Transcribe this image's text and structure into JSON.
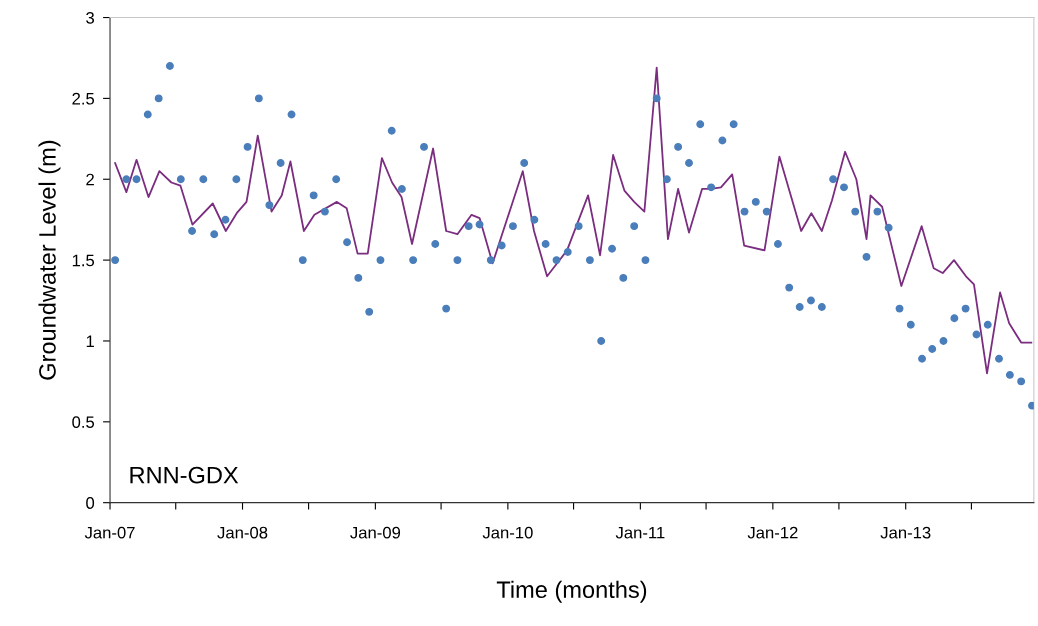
{
  "chart_data": {
    "type": "scatter",
    "xlabel": "Time (months)",
    "ylabel": "Groundwater Level (m)",
    "annotations": [
      "RNN-GDX"
    ],
    "x": [
      "2007-01-15",
      "2007-02-15",
      "2007-03-15",
      "2007-04-15",
      "2007-05-15",
      "2007-06-15",
      "2007-07-15",
      "2007-08-15",
      "2007-09-15",
      "2007-10-15",
      "2007-11-15",
      "2007-12-15",
      "2008-01-15",
      "2008-02-15",
      "2008-03-15",
      "2008-04-15",
      "2008-05-15",
      "2008-06-15",
      "2008-07-15",
      "2008-08-15",
      "2008-09-15",
      "2008-10-15",
      "2008-11-15",
      "2008-12-15",
      "2009-01-15",
      "2009-02-15",
      "2009-03-15",
      "2009-04-15",
      "2009-05-15",
      "2009-06-15",
      "2009-07-15",
      "2009-08-15",
      "2009-09-15",
      "2009-10-15",
      "2009-11-15",
      "2009-12-15",
      "2010-01-15",
      "2010-02-15",
      "2010-03-15",
      "2010-04-15",
      "2010-05-15",
      "2010-06-15",
      "2010-07-15",
      "2010-08-15",
      "2010-09-15",
      "2010-10-15",
      "2010-11-15",
      "2010-12-15",
      "2011-01-15",
      "2011-02-15",
      "2011-03-15",
      "2011-04-15",
      "2011-05-15",
      "2011-06-15",
      "2011-07-15",
      "2011-08-15",
      "2011-09-15",
      "2011-10-15",
      "2011-11-15",
      "2011-12-15",
      "2012-01-15",
      "2012-02-15",
      "2012-03-15",
      "2012-04-15",
      "2012-05-15",
      "2012-06-15",
      "2012-07-15",
      "2012-08-15",
      "2012-09-15",
      "2012-10-15",
      "2012-11-15",
      "2012-12-15",
      "2013-01-15",
      "2013-02-15",
      "2013-03-15",
      "2013-04-15",
      "2013-05-15",
      "2013-06-15",
      "2013-07-15",
      "2013-08-15",
      "2013-09-15",
      "2013-10-15",
      "2013-11-15",
      "2013-12-15"
    ],
    "series": [
      {
        "color": "#4a7ebb",
        "marker": "circle",
        "values": [
          1.5,
          2.0,
          2.0,
          2.4,
          2.5,
          2.7,
          2.0,
          1.68,
          2.0,
          1.66,
          1.75,
          2.0,
          2.2,
          2.5,
          1.84,
          2.1,
          2.4,
          1.5,
          1.9,
          1.8,
          2.0,
          1.61,
          1.39,
          1.18,
          1.5,
          2.3,
          1.94,
          1.5,
          2.2,
          1.6,
          1.2,
          1.5,
          1.71,
          1.72,
          1.5,
          1.59,
          1.71,
          2.1,
          1.75,
          1.6,
          1.5,
          1.55,
          1.71,
          1.5,
          1.0,
          1.57,
          1.39,
          1.71,
          1.5,
          2.5,
          2.0,
          2.2,
          2.1,
          2.34,
          1.95,
          2.24,
          2.34,
          1.8,
          1.86,
          1.8,
          1.6,
          1.33,
          1.21,
          1.25,
          1.21,
          2.0,
          1.95,
          1.8,
          1.52,
          1.8,
          1.7,
          1.2,
          1.1,
          0.89,
          0.95,
          1.0,
          1.14,
          1.2,
          1.04,
          1.1,
          0.89,
          0.79,
          0.75,
          0.6
        ]
      },
      {
        "type": "line",
        "color": "#7b2d7f",
        "line_style": "solid",
        "x": [
          "2007-01-15",
          "2007-02-15",
          "2007-03-15",
          "2007-04-17",
          "2007-05-17",
          "2007-06-19",
          "2007-07-14",
          "2007-08-16",
          "2007-10-11",
          "2007-11-16",
          "2007-12-16",
          "2008-01-12",
          "2008-02-12",
          "2008-03-21",
          "2008-04-18",
          "2008-05-12",
          "2008-06-18",
          "2008-07-17",
          "2008-09-17",
          "2008-10-14",
          "2008-11-13",
          "2008-12-11",
          "2009-01-19",
          "2009-02-16",
          "2009-03-14",
          "2009-04-12",
          "2009-06-09",
          "2009-07-15",
          "2009-08-15",
          "2009-09-23",
          "2009-10-15",
          "2009-11-20",
          "2010-02-11",
          "2010-03-14",
          "2010-04-19",
          "2010-06-13",
          "2010-08-10",
          "2010-09-12",
          "2010-10-18",
          "2010-11-18",
          "2010-12-15",
          "2011-01-12",
          "2011-02-15",
          "2011-03-18",
          "2011-04-15",
          "2011-05-15",
          "2011-06-20",
          "2011-07-15",
          "2011-08-11",
          "2011-09-11",
          "2011-10-14",
          "2011-12-09",
          "2012-01-19",
          "2012-03-19",
          "2012-04-16",
          "2012-05-15",
          "2012-06-12",
          "2012-07-18",
          "2012-08-18",
          "2012-09-15",
          "2012-09-26",
          "2012-10-28",
          "2012-12-20",
          "2013-02-14",
          "2013-03-19",
          "2013-04-13",
          "2013-05-14",
          "2013-06-16",
          "2013-07-08",
          "2013-08-13",
          "2013-09-18",
          "2013-10-13",
          "2013-11-15",
          "2013-12-13"
        ],
        "values": [
          2.1,
          1.92,
          2.12,
          1.89,
          2.05,
          1.98,
          1.96,
          1.72,
          1.85,
          1.68,
          1.79,
          1.86,
          2.27,
          1.8,
          1.9,
          2.11,
          1.68,
          1.78,
          1.86,
          1.82,
          1.54,
          1.54,
          2.13,
          1.98,
          1.89,
          1.6,
          2.19,
          1.68,
          1.66,
          1.78,
          1.76,
          1.48,
          2.05,
          1.68,
          1.4,
          1.56,
          1.9,
          1.53,
          2.15,
          1.93,
          1.86,
          1.8,
          2.69,
          1.63,
          1.94,
          1.67,
          1.94,
          1.94,
          1.95,
          2.03,
          1.59,
          1.56,
          2.14,
          1.68,
          1.79,
          1.68,
          1.87,
          2.17,
          2.0,
          1.63,
          1.9,
          1.83,
          1.34,
          1.71,
          1.45,
          1.42,
          1.5,
          1.4,
          1.35,
          0.8,
          1.3,
          1.11,
          0.99,
          0.99
        ]
      }
    ],
    "xlim": [
      "2007-01-01",
      "2013-12-20"
    ],
    "xticks": [
      {
        "value": "2007-01-01",
        "label": "Jan-07"
      },
      {
        "value": "2007-07-01",
        "label": null
      },
      {
        "value": "2008-01-01",
        "label": "Jan-08"
      },
      {
        "value": "2008-07-01",
        "label": null
      },
      {
        "value": "2009-01-01",
        "label": "Jan-09"
      },
      {
        "value": "2009-07-01",
        "label": null
      },
      {
        "value": "2010-01-01",
        "label": "Jan-10"
      },
      {
        "value": "2010-07-01",
        "label": null
      },
      {
        "value": "2011-01-01",
        "label": "Jan-11"
      },
      {
        "value": "2011-07-01",
        "label": null
      },
      {
        "value": "2012-01-01",
        "label": "Jan-12"
      },
      {
        "value": "2012-07-01",
        "label": null
      },
      {
        "value": "2013-01-01",
        "label": "Jan-13"
      },
      {
        "value": "2013-07-01",
        "label": null
      }
    ],
    "ylim": [
      0,
      3
    ],
    "yticks": [
      0,
      0.5,
      1,
      1.5,
      2,
      2.5,
      3
    ],
    "grid": false,
    "legend": false
  }
}
